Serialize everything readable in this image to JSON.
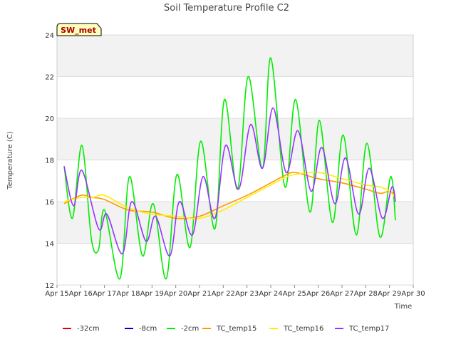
{
  "chart_data": {
    "type": "line",
    "title": "Soil Temperature Profile C2",
    "xlabel": "Time",
    "ylabel": "Temperature (C)",
    "badge": "SW_met",
    "xlim": [
      0,
      15
    ],
    "ylim": [
      12,
      24
    ],
    "x_ticks": [
      {
        "v": 0,
        "label": "Apr 15"
      },
      {
        "v": 1,
        "label": "Apr 16"
      },
      {
        "v": 2,
        "label": "Apr 17"
      },
      {
        "v": 3,
        "label": "Apr 18"
      },
      {
        "v": 4,
        "label": "Apr 19"
      },
      {
        "v": 5,
        "label": "Apr 20"
      },
      {
        "v": 6,
        "label": "Apr 21"
      },
      {
        "v": 7,
        "label": "Apr 22"
      },
      {
        "v": 8,
        "label": "Apr 23"
      },
      {
        "v": 9,
        "label": "Apr 24"
      },
      {
        "v": 10,
        "label": "Apr 25"
      },
      {
        "v": 11,
        "label": "Apr 26"
      },
      {
        "v": 12,
        "label": "Apr 27"
      },
      {
        "v": 13,
        "label": "Apr 28"
      },
      {
        "v": 14,
        "label": "Apr 29"
      },
      {
        "v": 15,
        "label": "Apr 30"
      }
    ],
    "y_ticks": [
      12,
      14,
      16,
      18,
      20,
      22,
      24
    ],
    "grid": true,
    "bands": true,
    "legend_position": "bottom",
    "series": [
      {
        "name": "-32cm",
        "color": "#dd0000",
        "x": [],
        "y": []
      },
      {
        "name": "-8cm",
        "color": "#0000cc",
        "x": [],
        "y": []
      },
      {
        "name": "-2cm",
        "color": "#00ee00",
        "x": [
          0.3,
          0.65,
          1.05,
          1.45,
          1.75,
          2.0,
          2.65,
          3.05,
          3.6,
          4.05,
          4.6,
          5.05,
          5.6,
          6.05,
          6.65,
          7.05,
          7.6,
          8.05,
          8.65,
          9.0,
          9.6,
          10.05,
          10.65,
          11.05,
          11.6,
          12.05,
          12.6,
          13.05,
          13.6,
          14.05,
          14.25
        ],
        "y": [
          17.7,
          15.2,
          18.7,
          14.2,
          13.7,
          15.6,
          12.3,
          17.2,
          13.4,
          15.9,
          12.3,
          17.3,
          13.8,
          18.9,
          14.7,
          20.9,
          16.6,
          22.0,
          17.6,
          22.9,
          16.7,
          20.9,
          15.5,
          19.9,
          15.0,
          19.2,
          14.4,
          18.8,
          14.3,
          17.2,
          15.1
        ]
      },
      {
        "name": "TC_temp15",
        "color": "#ff9900",
        "x": [
          0.3,
          1.0,
          1.5,
          2.0,
          3.0,
          4.0,
          5.0,
          6.0,
          7.0,
          8.0,
          9.0,
          9.5,
          10.0,
          11.0,
          12.0,
          13.0,
          13.6,
          14.0,
          14.25
        ],
        "y": [
          15.9,
          16.3,
          16.2,
          16.1,
          15.6,
          15.5,
          15.2,
          15.3,
          15.8,
          16.3,
          16.9,
          17.2,
          17.4,
          17.1,
          16.9,
          16.6,
          16.4,
          16.5,
          16.3
        ]
      },
      {
        "name": "TC_temp16",
        "color": "#ffee00",
        "x": [
          0.3,
          1.0,
          1.5,
          2.0,
          3.0,
          4.0,
          5.0,
          6.0,
          7.0,
          8.0,
          9.0,
          9.5,
          10.0,
          11.0,
          12.0,
          13.0,
          13.6,
          14.0,
          14.25
        ],
        "y": [
          16.0,
          16.2,
          16.2,
          16.3,
          15.7,
          15.4,
          15.3,
          15.2,
          15.6,
          16.2,
          16.8,
          17.1,
          17.3,
          17.4,
          17.1,
          16.8,
          16.7,
          16.5,
          16.2
        ]
      },
      {
        "name": "TC_temp17",
        "color": "#9933ff",
        "x": [
          0.3,
          0.7,
          1.05,
          1.75,
          2.1,
          2.75,
          3.15,
          3.75,
          4.15,
          4.75,
          5.15,
          5.7,
          6.15,
          6.65,
          7.1,
          7.65,
          8.15,
          8.65,
          9.1,
          9.65,
          10.15,
          10.7,
          11.15,
          11.7,
          12.15,
          12.7,
          13.15,
          13.7,
          14.1,
          14.25
        ],
        "y": [
          17.7,
          15.8,
          17.5,
          14.7,
          15.4,
          13.5,
          16.0,
          14.1,
          15.3,
          13.4,
          16.0,
          14.4,
          17.2,
          15.2,
          18.7,
          16.6,
          19.7,
          17.6,
          20.5,
          17.4,
          19.4,
          16.5,
          18.6,
          15.9,
          18.1,
          15.4,
          17.6,
          15.2,
          16.7,
          16.0
        ]
      }
    ]
  }
}
